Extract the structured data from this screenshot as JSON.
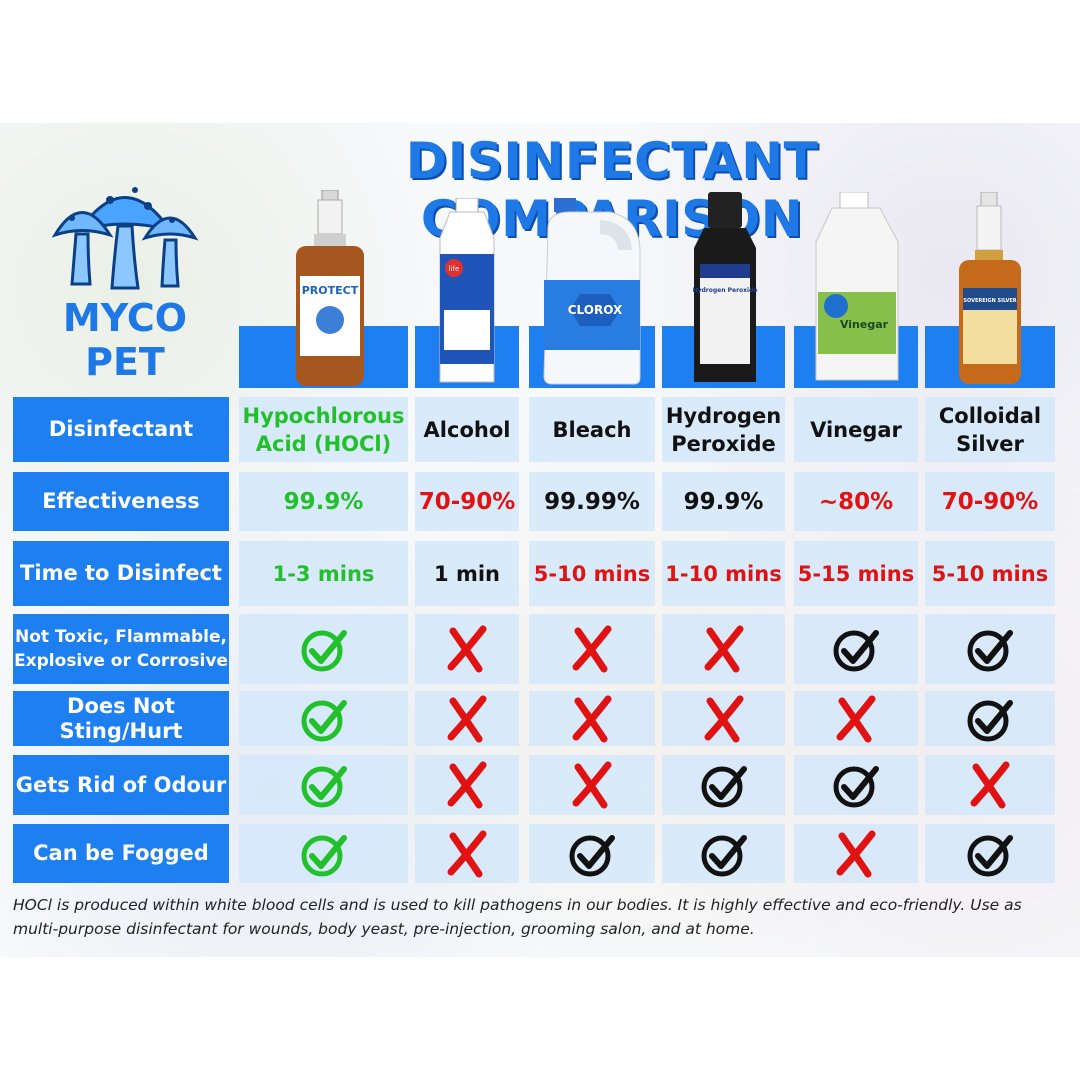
{
  "title": "DISINFECTANT COMPARISON",
  "brand": {
    "line1": "MYCO",
    "line2": "PET"
  },
  "bottle_labels": [
    "PROTECT",
    "life",
    "CLOROX",
    "Hydrogen Peroxide",
    "Vinegar",
    "SOVEREIGN SILVER"
  ],
  "rows": [
    {
      "label": "Disinfectant"
    },
    {
      "label": "Effectiveness"
    },
    {
      "label": "Time to Disinfect"
    },
    {
      "label": "Not Toxic, Flammable, Explosive or Corrosive"
    },
    {
      "label": "Does Not Sting/Hurt"
    },
    {
      "label": "Gets Rid of Odour"
    },
    {
      "label": "Can be Fogged"
    }
  ],
  "products": [
    {
      "name": "Hypochlorous Acid (HOCl)",
      "effectiveness": "99.9%",
      "time": "1-3 mins"
    },
    {
      "name": "Alcohol",
      "effectiveness": "70-90%",
      "time": "1 min"
    },
    {
      "name": "Bleach",
      "effectiveness": "99.99%",
      "time": "5-10 mins"
    },
    {
      "name": "Hydrogen Peroxide",
      "effectiveness": "99.9%",
      "time": "1-10 mins"
    },
    {
      "name": "Vinegar",
      "effectiveness": "~80%",
      "time": "5-15 mins"
    },
    {
      "name": "Colloidal Silver",
      "effectiveness": "70-90%",
      "time": "5-10 mins"
    }
  ],
  "marks": {
    "not_toxic": [
      "check-green",
      "cross",
      "cross",
      "cross",
      "check",
      "check"
    ],
    "no_sting": [
      "check-green",
      "cross",
      "cross",
      "cross",
      "cross",
      "check"
    ],
    "odour": [
      "check-green",
      "cross",
      "cross",
      "check",
      "check",
      "cross"
    ],
    "fogged": [
      "check-green",
      "cross",
      "check",
      "check",
      "cross",
      "check"
    ]
  },
  "colors": {
    "accent": "#1e7ff0",
    "good": "#22c02a",
    "bad": "#e01212",
    "neutral": "#111111",
    "cell": "#d4e8fa"
  },
  "footnote": "HOCl is produced within white blood cells and is used to kill pathogens in our bodies. It is highly effective and eco-friendly. Use as multi-purpose disinfectant for wounds, body yeast, pre-injection, grooming salon, and at home."
}
